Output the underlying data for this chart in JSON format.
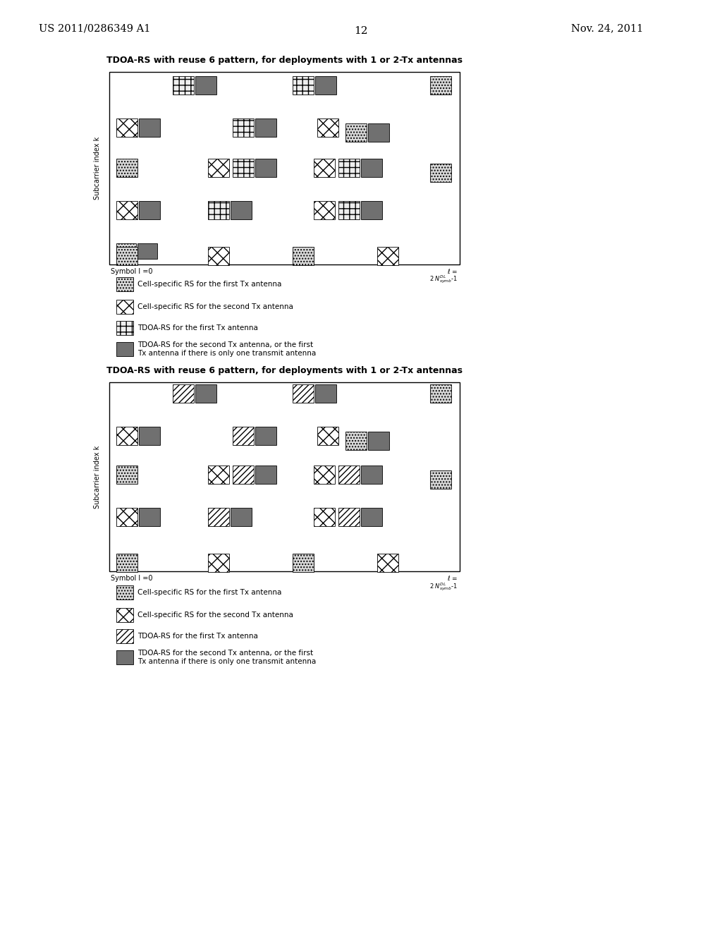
{
  "page_title_left": "US 2011/0286349 A1",
  "page_title_right": "Nov. 24, 2011",
  "page_number": "12",
  "diagram1_title": "TDOA-RS with reuse 6 pattern, for deployments with 1 or 2-Tx antennas",
  "diagram2_title": "TDOA-RS with reuse 6 pattern, for deployments with 1 or 2-Tx antennas",
  "xlabel": "Symbol l =0",
  "ylabel": "Subcarrier index k",
  "legend1": [
    "Cell-specific RS for the first Tx antenna",
    "Cell-specific RS for the second Tx antenna",
    "TDOA-RS for the first Tx antenna",
    "TDOA-RS for the second Tx antenna, or the first\nTx antenna if there is only one transmit antenna"
  ],
  "legend2": [
    "Cell-specific RS for the first Tx antenna",
    "Cell-specific RS for the second Tx antenna",
    "TDOA-RS for the first Tx antenna",
    "TDOA-RS for the second Tx antenna, or the first\nTx antenna if there is only one transmit antenna"
  ],
  "bg_color": "#ffffff"
}
